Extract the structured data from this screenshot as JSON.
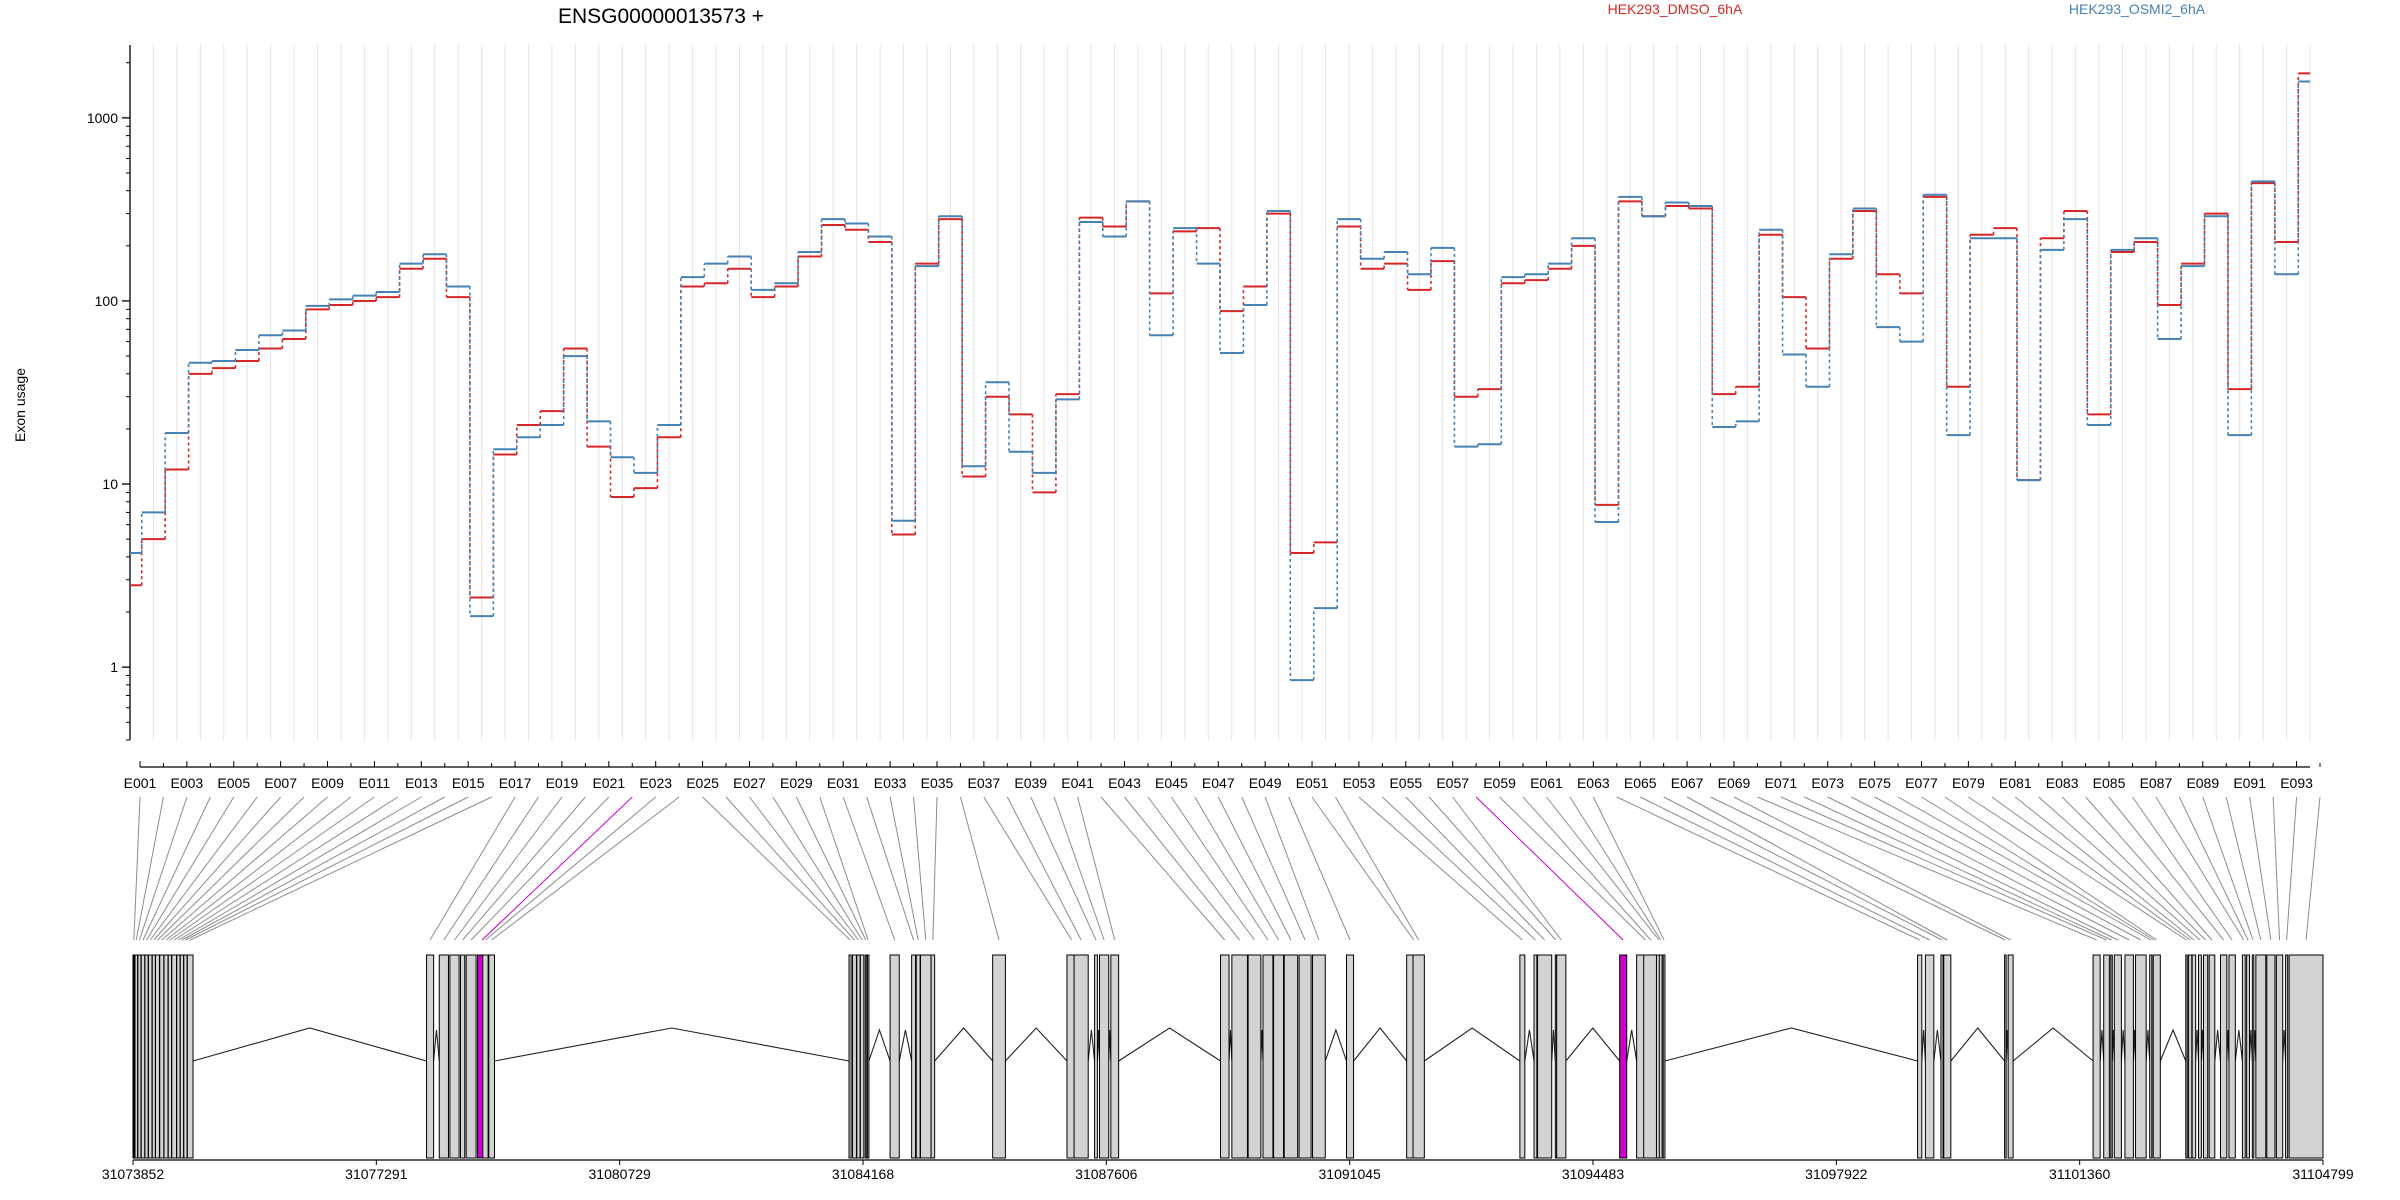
{
  "chart_data": {
    "type": "line",
    "scale_y": "log",
    "title": "ENSG00000013573 +",
    "ylabel": "Exon usage",
    "ylim": [
      0.4,
      2500
    ],
    "y_ticks": [
      1,
      10,
      100,
      1000
    ],
    "y_tick_labels": [
      "1",
      "10",
      "100",
      "1000"
    ],
    "grid": "vertical, light grey, one per exon",
    "legend_placement": "top",
    "categories": [
      "E001",
      "E002",
      "E003",
      "E004",
      "E005",
      "E006",
      "E007",
      "E008",
      "E009",
      "E010",
      "E011",
      "E012",
      "E013",
      "E014",
      "E015",
      "E016",
      "E017",
      "E018",
      "E019",
      "E020",
      "E021",
      "E022",
      "E023",
      "E024",
      "E025",
      "E026",
      "E027",
      "E028",
      "E029",
      "E030",
      "E031",
      "E032",
      "E033",
      "E034",
      "E035",
      "E036",
      "E037",
      "E038",
      "E039",
      "E040",
      "E041",
      "E042",
      "E043",
      "E044",
      "E045",
      "E046",
      "E047",
      "E048",
      "E049",
      "E050",
      "E051",
      "E052",
      "E053",
      "E054",
      "E055",
      "E056",
      "E057",
      "E058",
      "E059",
      "E060",
      "E061",
      "E062",
      "E063",
      "E064",
      "E065",
      "E066",
      "E067",
      "E068",
      "E069",
      "E070",
      "E071",
      "E072",
      "E073",
      "E074",
      "E075",
      "E076",
      "E077",
      "E078",
      "E079",
      "E080",
      "E081",
      "E082",
      "E083",
      "E084",
      "E085",
      "E086",
      "E087",
      "E088",
      "E089",
      "E090",
      "E091",
      "E092",
      "E093",
      "E094"
    ],
    "series": [
      {
        "name": "HEK293_DMSO_6hA",
        "color": "#d62728",
        "values": [
          2.8,
          5,
          12,
          40,
          43,
          47,
          55,
          62,
          90,
          95,
          100,
          105,
          150,
          170,
          105,
          2.4,
          14.5,
          21,
          25,
          55,
          16,
          8.5,
          9.5,
          18,
          120,
          125,
          150,
          105,
          120,
          175,
          260,
          245,
          210,
          5.3,
          160,
          280,
          11,
          30,
          24,
          9,
          31,
          285,
          255,
          350,
          110,
          240,
          250,
          88,
          120,
          300,
          4.2,
          4.8,
          255,
          150,
          160,
          115,
          165,
          30,
          33,
          125,
          130,
          150,
          200,
          7.7,
          350,
          290,
          330,
          320,
          31,
          34,
          230,
          105,
          55,
          170,
          310,
          140,
          110,
          370,
          34,
          230,
          250,
          10.5,
          220,
          310,
          24,
          185,
          210,
          95,
          160,
          300,
          33,
          440,
          210,
          1750
        ]
      },
      {
        "name": "HEK293_OSMI2_6hA",
        "color": "#4682b4",
        "values": [
          4.2,
          7,
          19,
          46,
          47,
          54,
          65,
          69,
          94,
          102,
          107,
          112,
          160,
          180,
          120,
          1.9,
          15.5,
          18,
          21,
          50,
          22,
          14,
          11.5,
          21,
          135,
          160,
          175,
          115,
          125,
          185,
          280,
          265,
          225,
          6.3,
          155,
          290,
          12.5,
          36,
          15,
          11.5,
          29,
          270,
          225,
          350,
          65,
          250,
          160,
          52,
          95,
          310,
          0.85,
          2.1,
          280,
          170,
          185,
          140,
          195,
          16,
          16.5,
          135,
          140,
          160,
          220,
          6.2,
          370,
          290,
          345,
          330,
          20.5,
          22,
          245,
          51,
          34,
          180,
          320,
          72,
          60,
          380,
          18.5,
          220,
          220,
          10.5,
          190,
          280,
          21,
          190,
          220,
          62,
          155,
          290,
          18.5,
          450,
          140,
          1580
        ]
      }
    ],
    "xaxis_tick_labels": [
      "E001",
      "E003",
      "E005",
      "E007",
      "E009",
      "E011",
      "E013",
      "E015",
      "E017",
      "E019",
      "E021",
      "E023",
      "E025",
      "E027",
      "E029",
      "E031",
      "E033",
      "E035",
      "E037",
      "E039",
      "E041",
      "E043",
      "E045",
      "E047",
      "E049",
      "E051",
      "E053",
      "E055",
      "E057",
      "E059",
      "E061",
      "E063",
      "E065",
      "E067",
      "E069",
      "E071",
      "E073",
      "E075",
      "E077",
      "E079",
      "E081",
      "E083",
      "E085",
      "E087",
      "E089",
      "E091",
      "E093"
    ],
    "highlighted_exons": [
      "E022",
      "E058"
    ],
    "highlight_color": "#cc00cc",
    "genomic_range": [
      31073852,
      31104799
    ],
    "genomic_tick_labels": [
      "31073852",
      "31077291",
      "31080729",
      "31084168",
      "31087606",
      "31091045",
      "31094483",
      "31097922",
      "31101360",
      "31104799"
    ],
    "exon_genomic_starts": [
      31073852,
      31073879,
      31073921,
      31073968,
      31074020,
      31074070,
      31074124,
      31074170,
      31074230,
      31074290,
      31074350,
      31074400,
      31074470,
      31074520,
      31074570,
      31074620,
      31078000,
      31078180,
      31078330,
      31078480,
      31078560,
      31078720,
      31078795,
      31078880,
      31083970,
      31084020,
      31084080,
      31084130,
      31084200,
      31084230,
      31084550,
      31084855,
      31084920,
      31084980,
      31085130,
      31086000,
      31087050,
      31087150,
      31087440,
      31087510,
      31087670,
      31089220,
      31089380,
      31089610,
      31089820,
      31089970,
      31090120,
      31090330,
      31090520,
      31091000,
      31091850,
      31091940,
      31093450,
      31093650,
      31093700,
      31093950,
      31093970,
      31094860,
      31095100,
      31095200,
      31095380,
      31095420,
      31095475,
      31099070,
      31099180,
      31099400,
      31099440,
      31100300,
      31100350,
      31101550,
      31101700,
      31101800,
      31101850,
      31102000,
      31102150,
      31102350,
      31102400,
      31102400,
      31102860,
      31102900,
      31102950,
      31103040,
      31103110,
      31103190,
      31103350,
      31103470,
      31103660,
      31103720,
      31103800,
      31103850,
      31104005,
      31104140,
      31104270,
      31104320
    ],
    "exon_genomic_ends": [
      31073877,
      31073917,
      31073964,
      31074018,
      31074066,
      31074121,
      31074168,
      31074226,
      31074287,
      31074347,
      31074396,
      31074467,
      31074517,
      31074567,
      31074617,
      31074700,
      31078100,
      31078310,
      31078460,
      31078540,
      31078700,
      31078850,
      31078870,
      31078960,
      31084000,
      31084075,
      31084126,
      31084180,
      31084215,
      31084250,
      31084680,
      31084910,
      31084975,
      31085130,
      31085180,
      31086180,
      31087180,
      31087350,
      31087480,
      31087640,
      31087780,
      31089340,
      31089600,
      31089790,
      31089960,
      31090110,
      31090310,
      31090500,
      31090700,
      31091100,
      31092050,
      31092100,
      31093520,
      31093690,
      31093900,
      31093965,
      31094100,
      31094960,
      31095350,
      31095400,
      31095450,
      31095460,
      31095500,
      31099130,
      31099300,
      31099430,
      31099540,
      31100320,
      31100420,
      31101650,
      31101780,
      31101820,
      31101950,
      31102120,
      31102300,
      31102380,
      31102420,
      31102500,
      31102880,
      31102945,
      31103000,
      31103080,
      31103170,
      31103270,
      31103440,
      31103560,
      31103700,
      31103760,
      31103820,
      31103990,
      31104120,
      31104230,
      31104300,
      31104799
    ]
  }
}
